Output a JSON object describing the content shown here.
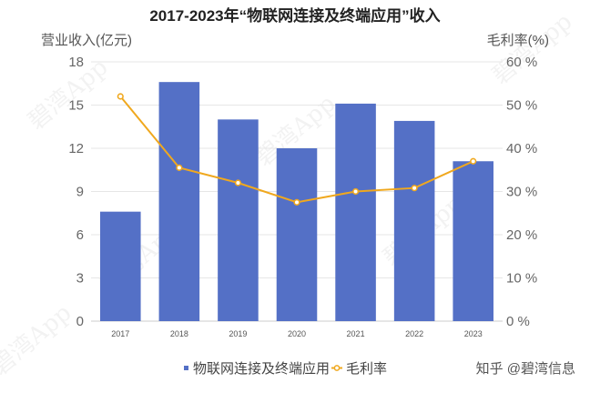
{
  "chart_data": {
    "type": "bar",
    "title": "2017-2023年“物联网连接及终端应用”收入",
    "ylabel_left": "营业收入(亿元)",
    "ylabel_right": "毛利率(%)",
    "categories": [
      "2017",
      "2018",
      "2019",
      "2020",
      "2021",
      "2022",
      "2023"
    ],
    "series": [
      {
        "name": "物联网连接及终端应用",
        "type": "bar",
        "axis": "left",
        "values": [
          7.6,
          16.6,
          14.0,
          12.0,
          15.1,
          13.9,
          11.1
        ],
        "color": "#5470c6"
      },
      {
        "name": "毛利率",
        "type": "line",
        "axis": "right",
        "values": [
          52.0,
          35.5,
          32.0,
          27.5,
          30.0,
          30.8,
          37.0
        ],
        "color": "#f0a81e"
      }
    ],
    "ylim_left": [
      0,
      18
    ],
    "yticks_left": [
      "0",
      "3",
      "6",
      "9",
      "12",
      "15",
      "18"
    ],
    "ylim_right": [
      0,
      60
    ],
    "yticks_right": [
      "0 %",
      "10 %",
      "20 %",
      "30 %",
      "40 %",
      "50 %",
      "60 %"
    ],
    "grid": true,
    "legend_position": "bottom"
  },
  "watermark": "碧湾App",
  "credit": "知乎 @碧湾信息",
  "colors": {
    "grid": "#e6e6e6",
    "axis": "#cccccc"
  }
}
